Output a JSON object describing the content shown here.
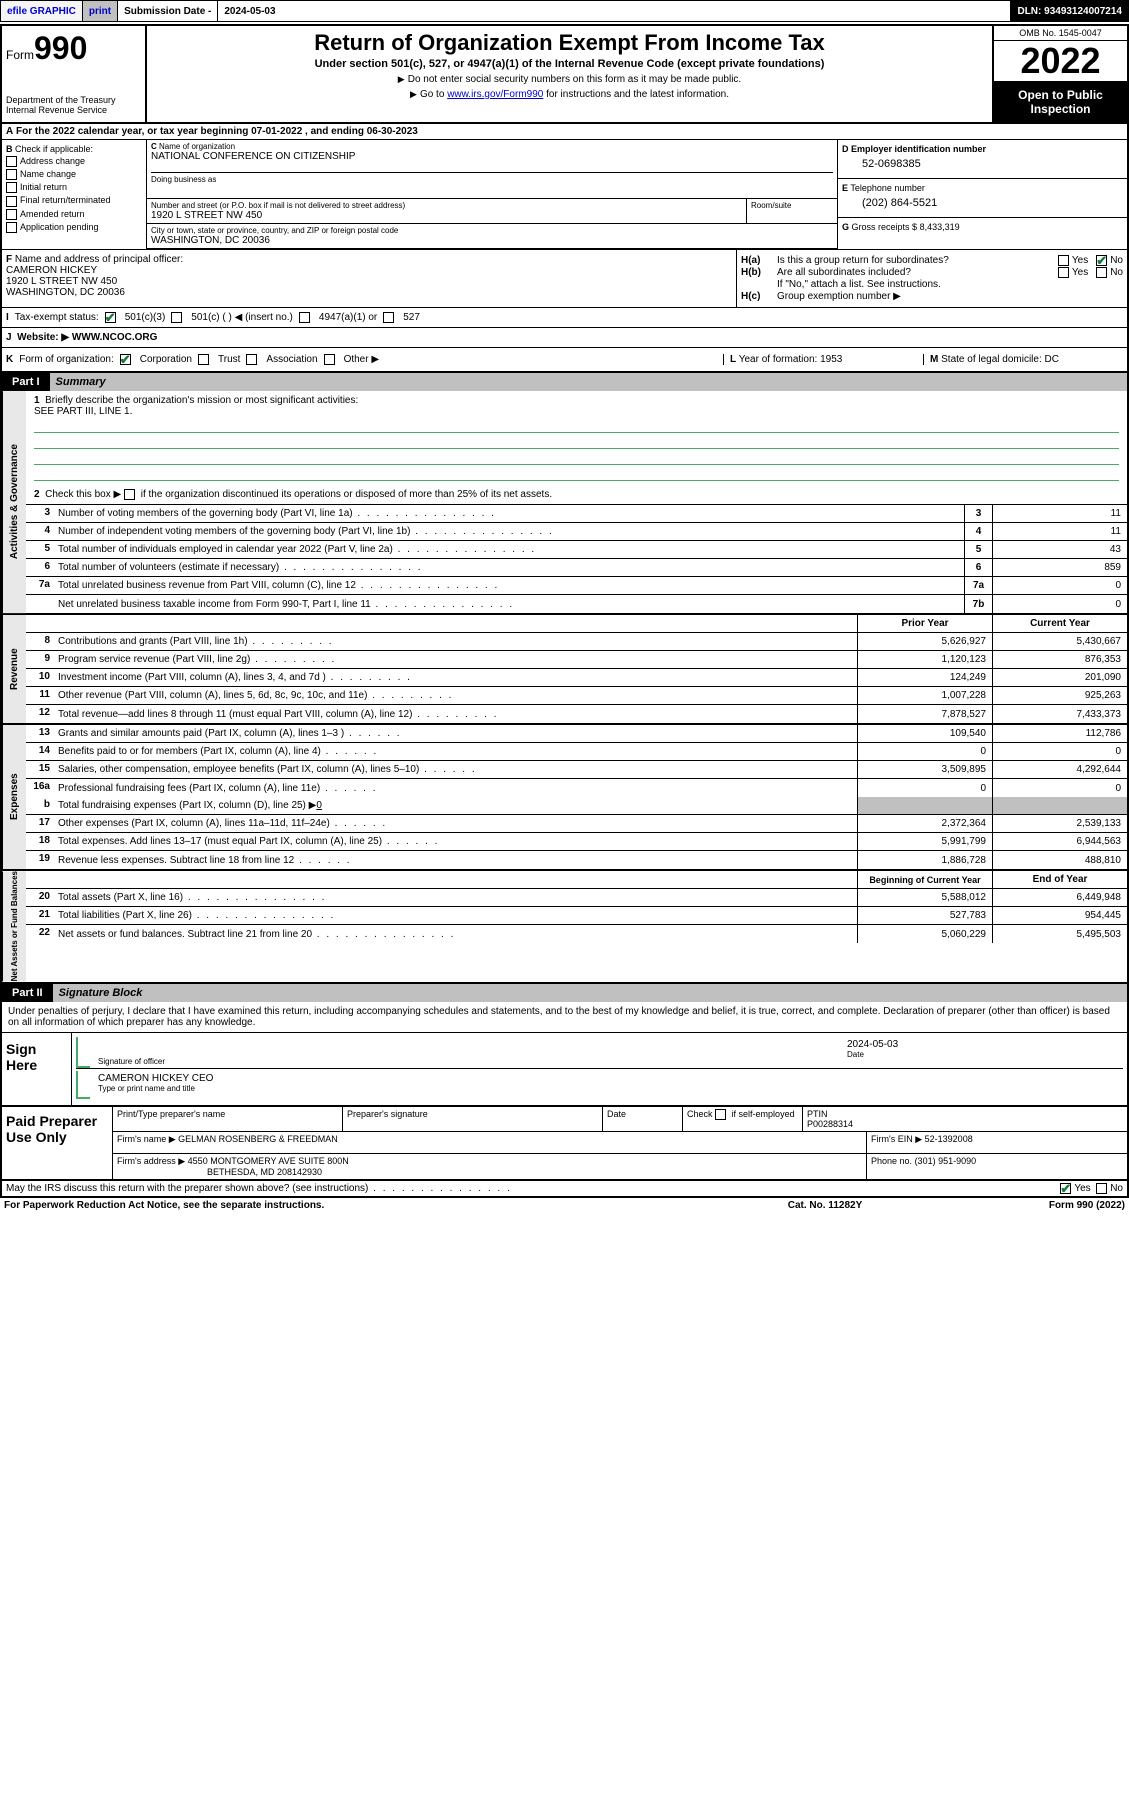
{
  "top_bar": {
    "efile": "efile GRAPHIC",
    "print": "print",
    "sub_date_label": "Submission Date - ",
    "sub_date_val": "2024-05-03",
    "dln": "DLN: 93493124007214"
  },
  "header": {
    "form_prefix": "Form",
    "form_num": "990",
    "dept": "Department of the Treasury\nInternal Revenue Service",
    "title": "Return of Organization Exempt From Income Tax",
    "subtitle": "Under section 501(c), 527, or 4947(a)(1) of the Internal Revenue Code (except private foundations)",
    "note1": "Do not enter social security numbers on this form as it may be made public.",
    "note2_pre": "Go to ",
    "note2_link": "www.irs.gov/Form990",
    "note2_post": " for instructions and the latest information.",
    "omb": "OMB No. 1545-0047",
    "year": "2022",
    "open": "Open to Public Inspection"
  },
  "row_a": {
    "text": "For the 2022 calendar year, or tax year beginning ",
    "begin": "07-01-2022",
    "mid": " , and ending ",
    "end": "06-30-2023"
  },
  "b": {
    "label": "Check if applicable:",
    "items": [
      "Address change",
      "Name change",
      "Initial return",
      "Final return/terminated",
      "Amended return",
      "Application pending"
    ]
  },
  "c": {
    "name_label": "Name of organization",
    "name": "NATIONAL CONFERENCE ON CITIZENSHIP",
    "dba_label": "Doing business as",
    "addr_label": "Number and street (or P.O. box if mail is not delivered to street address)",
    "addr": "1920 L STREET NW 450",
    "room_label": "Room/suite",
    "city_label": "City or town, state or province, country, and ZIP or foreign postal code",
    "city": "WASHINGTON, DC  20036"
  },
  "d": {
    "label": "Employer identification number",
    "val": "52-0698385"
  },
  "e": {
    "label": "Telephone number",
    "val": "(202) 864-5521"
  },
  "g": {
    "label": "Gross receipts $",
    "val": "8,433,319"
  },
  "f": {
    "label": "Name and address of principal officer:",
    "name": "CAMERON HICKEY",
    "addr1": "1920 L STREET NW 450",
    "addr2": "WASHINGTON, DC  20036"
  },
  "h": {
    "a_label": "Is this a group return for subordinates?",
    "b_label": "Are all subordinates included?",
    "b_note": "If \"No,\" attach a list. See instructions.",
    "c_label": "Group exemption number ▶",
    "yes": "Yes",
    "no": "No"
  },
  "i": {
    "label": "Tax-exempt status:",
    "opt1": "501(c)(3)",
    "opt2": "501(c) (  ) ◀ (insert no.)",
    "opt3": "4947(a)(1) or",
    "opt4": "527"
  },
  "j": {
    "label": "Website: ▶",
    "val": "WWW.NCOC.ORG"
  },
  "k": {
    "label": "Form of organization:",
    "opts": [
      "Corporation",
      "Trust",
      "Association",
      "Other ▶"
    ]
  },
  "l": {
    "label": "Year of formation:",
    "val": "1953"
  },
  "m": {
    "label": "State of legal domicile:",
    "val": "DC"
  },
  "part1": {
    "num": "Part I",
    "title": "Summary"
  },
  "mission": {
    "q1_num": "1",
    "q1": "Briefly describe the organization's mission or most significant activities:",
    "q1_val": "SEE PART III, LINE 1.",
    "q2_num": "2",
    "q2": "Check this box ▶",
    "q2_post": " if the organization discontinued its operations or disposed of more than 25% of its net assets."
  },
  "sidetabs": {
    "gov": "Activities & Governance",
    "rev": "Revenue",
    "exp": "Expenses",
    "net": "Net Assets or Fund Balances"
  },
  "gov_rows": [
    {
      "n": "3",
      "t": "Number of voting members of the governing body (Part VI, line 1a)",
      "box": "3",
      "v": "11"
    },
    {
      "n": "4",
      "t": "Number of independent voting members of the governing body (Part VI, line 1b)",
      "box": "4",
      "v": "11"
    },
    {
      "n": "5",
      "t": "Total number of individuals employed in calendar year 2022 (Part V, line 2a)",
      "box": "5",
      "v": "43"
    },
    {
      "n": "6",
      "t": "Total number of volunteers (estimate if necessary)",
      "box": "6",
      "v": "859"
    },
    {
      "n": "7a",
      "t": "Total unrelated business revenue from Part VIII, column (C), line 12",
      "box": "7a",
      "v": "0"
    },
    {
      "n": "",
      "t": "Net unrelated business taxable income from Form 990-T, Part I, line 11",
      "box": "7b",
      "v": "0"
    }
  ],
  "col_hdrs": {
    "prior": "Prior Year",
    "current": "Current Year"
  },
  "rev_rows": [
    {
      "n": "8",
      "t": "Contributions and grants (Part VIII, line 1h)",
      "p": "5,626,927",
      "c": "5,430,667"
    },
    {
      "n": "9",
      "t": "Program service revenue (Part VIII, line 2g)",
      "p": "1,120,123",
      "c": "876,353"
    },
    {
      "n": "10",
      "t": "Investment income (Part VIII, column (A), lines 3, 4, and 7d )",
      "p": "124,249",
      "c": "201,090"
    },
    {
      "n": "11",
      "t": "Other revenue (Part VIII, column (A), lines 5, 6d, 8c, 9c, 10c, and 11e)",
      "p": "1,007,228",
      "c": "925,263"
    },
    {
      "n": "12",
      "t": "Total revenue—add lines 8 through 11 (must equal Part VIII, column (A), line 12)",
      "p": "7,878,527",
      "c": "7,433,373"
    }
  ],
  "exp_rows": [
    {
      "n": "13",
      "t": "Grants and similar amounts paid (Part IX, column (A), lines 1–3 )",
      "p": "109,540",
      "c": "112,786"
    },
    {
      "n": "14",
      "t": "Benefits paid to or for members (Part IX, column (A), line 4)",
      "p": "0",
      "c": "0"
    },
    {
      "n": "15",
      "t": "Salaries, other compensation, employee benefits (Part IX, column (A), lines 5–10)",
      "p": "3,509,895",
      "c": "4,292,644"
    },
    {
      "n": "16a",
      "t": "Professional fundraising fees (Part IX, column (A), line 11e)",
      "p": "0",
      "c": "0"
    }
  ],
  "exp_16b": {
    "n": "b",
    "t": "Total fundraising expenses (Part IX, column (D), line 25) ▶",
    "v": "0"
  },
  "exp_rows2": [
    {
      "n": "17",
      "t": "Other expenses (Part IX, column (A), lines 11a–11d, 11f–24e)",
      "p": "2,372,364",
      "c": "2,539,133"
    },
    {
      "n": "18",
      "t": "Total expenses. Add lines 13–17 (must equal Part IX, column (A), line 25)",
      "p": "5,991,799",
      "c": "6,944,563"
    },
    {
      "n": "19",
      "t": "Revenue less expenses. Subtract line 18 from line 12",
      "p": "1,886,728",
      "c": "488,810"
    }
  ],
  "net_hdrs": {
    "begin": "Beginning of Current Year",
    "end": "End of Year"
  },
  "net_rows": [
    {
      "n": "20",
      "t": "Total assets (Part X, line 16)",
      "p": "5,588,012",
      "c": "6,449,948"
    },
    {
      "n": "21",
      "t": "Total liabilities (Part X, line 26)",
      "p": "527,783",
      "c": "954,445"
    },
    {
      "n": "22",
      "t": "Net assets or fund balances. Subtract line 21 from line 20",
      "p": "5,060,229",
      "c": "5,495,503"
    }
  ],
  "part2": {
    "num": "Part II",
    "title": "Signature Block"
  },
  "penalty": "Under penalties of perjury, I declare that I have examined this return, including accompanying schedules and statements, and to the best of my knowledge and belief, it is true, correct, and complete. Declaration of preparer (other than officer) is based on all information of which preparer has any knowledge.",
  "sign": {
    "here": "Sign Here",
    "sig_label": "Signature of officer",
    "date_label": "Date",
    "date_val": "2024-05-03",
    "name": "CAMERON HICKEY CEO",
    "name_label": "Type or print name and title"
  },
  "prep": {
    "title": "Paid Preparer Use Only",
    "h1": "Print/Type preparer's name",
    "h2": "Preparer's signature",
    "h3": "Date",
    "h4_pre": "Check",
    "h4_post": "if self-employed",
    "h5": "PTIN",
    "ptin": "P00288314",
    "firm_label": "Firm's name    ▶",
    "firm": "GELMAN ROSENBERG & FREEDMAN",
    "ein_label": "Firm's EIN ▶",
    "ein": "52-1392008",
    "addr_label": "Firm's address ▶",
    "addr1": "4550 MONTGOMERY AVE SUITE 800N",
    "addr2": "BETHESDA, MD  208142930",
    "phone_label": "Phone no.",
    "phone": "(301) 951-9090"
  },
  "footer": {
    "discuss": "May the IRS discuss this return with the preparer shown above? (see instructions)",
    "yes": "Yes",
    "no": "No",
    "pra": "For Paperwork Reduction Act Notice, see the separate instructions.",
    "cat": "Cat. No. 11282Y",
    "form": "Form 990 (2022)"
  }
}
